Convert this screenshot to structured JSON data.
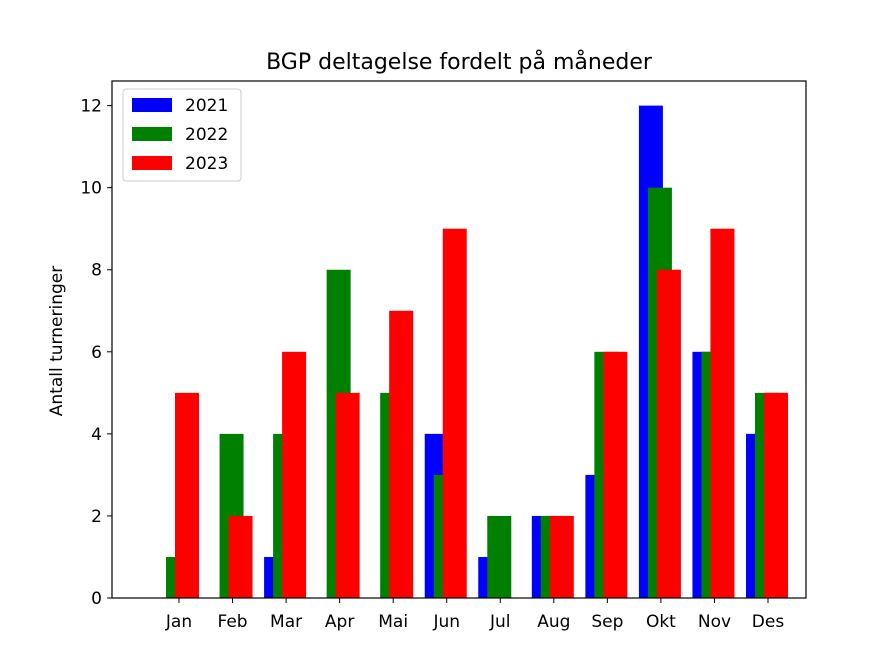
{
  "chart_data": {
    "type": "bar",
    "title": "BGP deltagelse fordelt på måneder",
    "xlabel": "",
    "ylabel": "Antall turneringer",
    "categories": [
      "Jan",
      "Feb",
      "Mar",
      "Apr",
      "Mai",
      "Jun",
      "Jul",
      "Aug",
      "Sep",
      "Okt",
      "Nov",
      "Des"
    ],
    "series": [
      {
        "name": "2021",
        "color": "#0000ff",
        "values": [
          0,
          0,
          1,
          0,
          0,
          4,
          1,
          2,
          3,
          12,
          6,
          4
        ]
      },
      {
        "name": "2022",
        "color": "#008000",
        "values": [
          1,
          4,
          4,
          8,
          5,
          3,
          2,
          2,
          6,
          10,
          6,
          5
        ]
      },
      {
        "name": "2023",
        "color": "#ff0000",
        "values": [
          5,
          2,
          6,
          5,
          7,
          9,
          0,
          2,
          6,
          8,
          9,
          5
        ]
      }
    ],
    "ylim": [
      0,
      12.6
    ],
    "yticks": [
      0,
      2,
      4,
      6,
      8,
      10,
      12
    ],
    "grid": false,
    "legend_position": "upper-left"
  }
}
